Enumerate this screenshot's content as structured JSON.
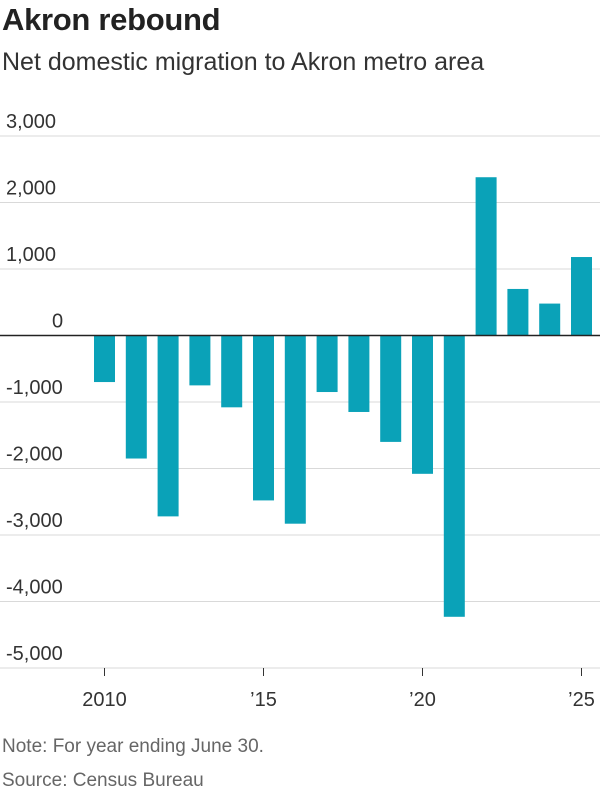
{
  "title": "Akron rebound",
  "subtitle": "Net domestic migration to Akron metro area",
  "note": "Note: For year ending June 30.",
  "source": "Source: Census Bureau",
  "colors": {
    "bar": "#0aa2b8",
    "grid": "#d9d9d9",
    "zero": "#222222"
  },
  "chart_data": {
    "type": "bar",
    "title": "Akron rebound",
    "subtitle": "Net domestic migration to Akron metro area",
    "x": [
      2010,
      2011,
      2012,
      2013,
      2014,
      2015,
      2016,
      2017,
      2018,
      2019,
      2020,
      2021,
      2022,
      2023,
      2024,
      2025
    ],
    "values": [
      -700,
      -1850,
      -2720,
      -750,
      -1080,
      -2480,
      -2830,
      -850,
      -1150,
      -1600,
      -2080,
      -4230,
      2380,
      700,
      480,
      1180
    ],
    "ylim": [
      -5000,
      3000
    ],
    "yticks": [
      3000,
      2000,
      1000,
      0,
      -1000,
      -2000,
      -3000,
      -4000,
      -5000
    ],
    "ytick_labels": [
      "3,000",
      "2,000",
      "1,000",
      "0",
      "-1,000",
      "-2,000",
      "-3,000",
      "-4,000",
      "-5,000"
    ],
    "xticks": [
      2010,
      2015,
      2020,
      2025
    ],
    "xtick_labels": [
      "2010",
      "’15",
      "’20",
      "’25"
    ],
    "grid": true,
    "xlabel": "",
    "ylabel": ""
  }
}
